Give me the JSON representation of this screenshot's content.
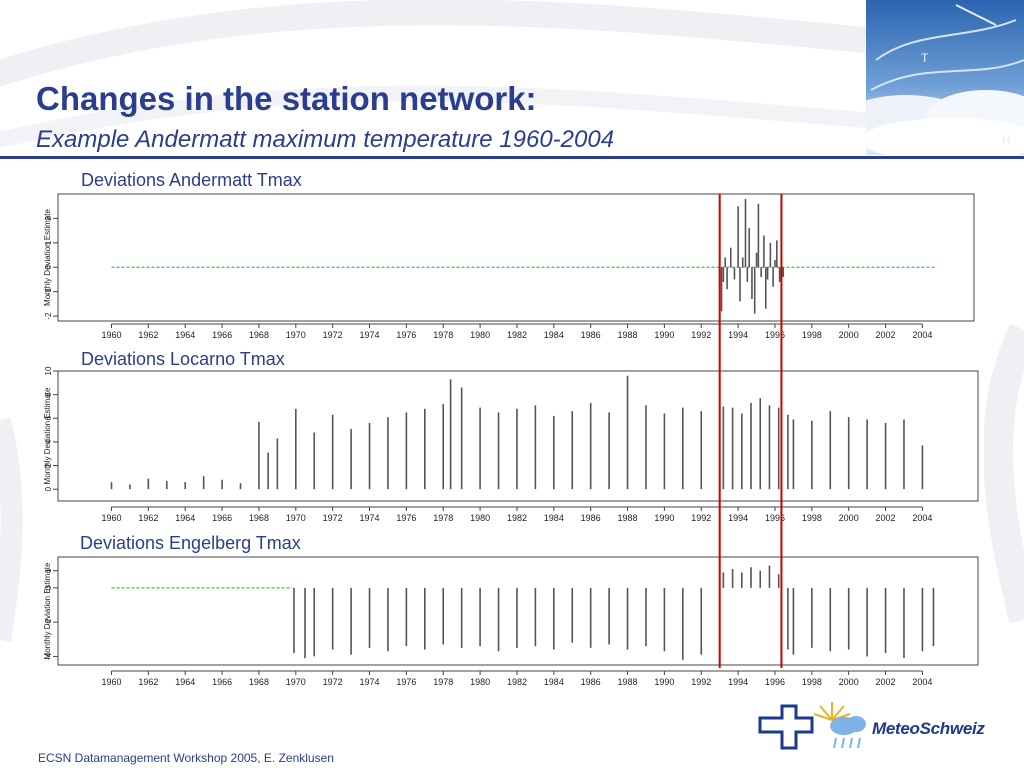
{
  "slide": {
    "title": "Changes in the station network:",
    "subtitle": "Example Andermatt maximum temperature 1960-2004",
    "footer": "ECSN Datamanagement Workshop 2005, E. Zenklusen",
    "logo_text": "MeteoSchweiz",
    "colors": {
      "title": "#2a3d8f",
      "break_line": "#cc0000",
      "zero_line": "#33cc33",
      "bars": "#555555"
    }
  },
  "chart_data": [
    {
      "type": "bar",
      "title": "Deviations Andermatt Tmax",
      "ylabel": "Monthly Deviation Estimate",
      "ylim": [
        -2.2,
        3
      ],
      "yticks": [
        -2,
        -1,
        0,
        1,
        2
      ],
      "xlim": [
        1959.5,
        2005.3
      ],
      "xticks": [
        1960,
        1962,
        1964,
        1966,
        1968,
        1970,
        1972,
        1974,
        1976,
        1978,
        1980,
        1982,
        1984,
        1986,
        1988,
        1990,
        1992,
        1994,
        1996,
        1998,
        2000,
        2002,
        2004
      ],
      "reference_line": {
        "from": 1960,
        "to": 2004.7,
        "value": 0
      },
      "series": [
        {
          "x": [
            1993.0,
            1993.1,
            1993.2,
            1993.3,
            1993.4,
            1993.6,
            1993.8,
            1994.0,
            1994.1,
            1994.25,
            1994.4,
            1994.5,
            1994.6,
            1994.75,
            1994.9,
            1995.0,
            1995.1,
            1995.25,
            1995.4,
            1995.5,
            1995.6,
            1995.75,
            1995.9,
            1996.0,
            1996.1,
            1996.25,
            1996.35,
            1996.45
          ],
          "values": [
            -0.8,
            -1.8,
            -0.6,
            0.4,
            -0.9,
            0.8,
            -0.5,
            2.5,
            -1.4,
            0.4,
            2.8,
            -0.6,
            1.6,
            -1.3,
            -1.9,
            0.6,
            2.6,
            -0.4,
            1.3,
            -1.7,
            -0.5,
            1.0,
            -0.8,
            0.3,
            1.1,
            -0.6,
            0.5,
            -0.4
          ]
        }
      ]
    },
    {
      "type": "bar",
      "title": "Deviations Locarno Tmax",
      "ylabel": "Monthly Deviation Estimate",
      "ylim": [
        -1,
        10
      ],
      "yticks": [
        0,
        2,
        4,
        6,
        8,
        10
      ],
      "xlim": [
        1959.5,
        2005.3
      ],
      "xticks": [
        1960,
        1962,
        1964,
        1966,
        1968,
        1970,
        1972,
        1974,
        1976,
        1978,
        1980,
        1982,
        1984,
        1986,
        1988,
        1990,
        1992,
        1994,
        1996,
        1998,
        2000,
        2002,
        2004
      ],
      "series": [
        {
          "x": [
            1960,
            1961,
            1962,
            1963,
            1964,
            1965,
            1966,
            1967,
            1968,
            1968.5,
            1969,
            1970,
            1971,
            1972,
            1973,
            1974,
            1975,
            1976,
            1977,
            1978,
            1978.4,
            1979,
            1980,
            1981,
            1982,
            1983,
            1984,
            1985,
            1986,
            1987,
            1988,
            1989,
            1990,
            1991,
            1992,
            1993.2,
            1993.7,
            1994.2,
            1994.7,
            1995.2,
            1995.7,
            1996.2,
            1996.7,
            1997,
            1998,
            1999,
            2000,
            2001,
            2002,
            2003,
            2004
          ],
          "values": [
            0.6,
            0.4,
            0.9,
            0.7,
            0.6,
            1.1,
            0.8,
            0.5,
            5.7,
            3.1,
            4.3,
            6.8,
            4.8,
            6.3,
            5.1,
            5.6,
            6.1,
            6.5,
            6.8,
            7.2,
            9.3,
            8.6,
            6.9,
            6.5,
            6.8,
            7.1,
            6.2,
            6.6,
            7.3,
            6.5,
            9.6,
            7.1,
            6.4,
            6.9,
            6.6,
            7.0,
            6.9,
            6.4,
            7.3,
            7.7,
            7.1,
            6.9,
            6.3,
            5.9,
            5.8,
            6.6,
            6.1,
            5.9,
            5.6,
            5.9,
            3.7
          ]
        }
      ]
    },
    {
      "type": "bar",
      "title": "Deviations Engelberg Tmax",
      "ylabel": "Monthly Deviation Estimate",
      "ylim": [
        -4.5,
        1.8
      ],
      "yticks": [
        -4,
        -2,
        0,
        1
      ],
      "xlim": [
        1959.5,
        2005.3
      ],
      "xticks": [
        1960,
        1962,
        1964,
        1966,
        1968,
        1970,
        1972,
        1974,
        1976,
        1978,
        1980,
        1982,
        1984,
        1986,
        1988,
        1990,
        1992,
        1994,
        1996,
        1998,
        2000,
        2002,
        2004
      ],
      "reference_line": {
        "from": 1960,
        "to": 1969.8,
        "value": 0
      },
      "series": [
        {
          "x": [
            1969.9,
            1970.5,
            1971,
            1972,
            1973,
            1974,
            1975,
            1976,
            1977,
            1978,
            1979,
            1980,
            1981,
            1982,
            1983,
            1984,
            1985,
            1986,
            1987,
            1988,
            1989,
            1990,
            1991,
            1992,
            1993.2,
            1993.7,
            1994.2,
            1994.7,
            1995.2,
            1995.7,
            1996.2,
            1996.7,
            1997,
            1998,
            1999,
            2000,
            2001,
            2002,
            2003,
            2004,
            2004.6
          ],
          "values": [
            -3.8,
            -4.1,
            -4.0,
            -3.6,
            -3.9,
            -3.5,
            -3.7,
            -3.4,
            -3.6,
            -3.3,
            -3.5,
            -3.4,
            -3.7,
            -3.5,
            -3.4,
            -3.6,
            -3.2,
            -3.5,
            -3.3,
            -3.6,
            -3.4,
            -3.7,
            -4.2,
            -3.9,
            0.9,
            1.1,
            0.9,
            1.2,
            1.0,
            1.3,
            0.8,
            -3.6,
            -3.9,
            -3.5,
            -3.7,
            -3.6,
            -4.0,
            -3.8,
            -4.1,
            -3.7,
            -3.4
          ]
        }
      ]
    }
  ],
  "break_lines": [
    1993.0,
    1996.35
  ]
}
